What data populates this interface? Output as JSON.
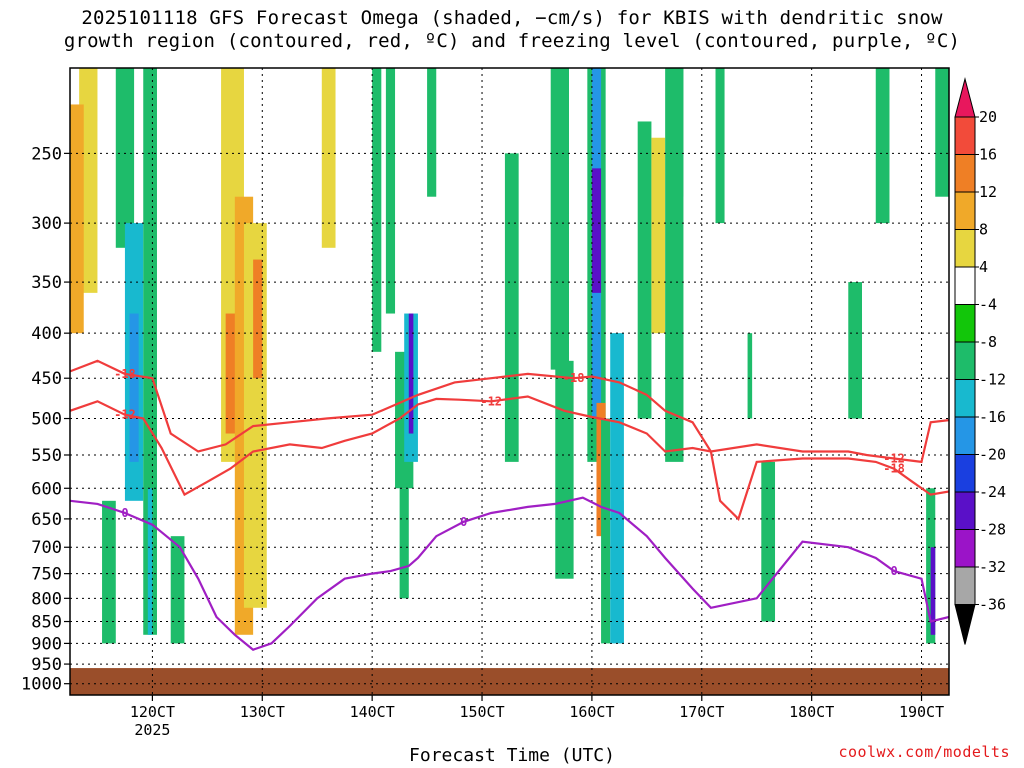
{
  "title": {
    "line1": "2025101118 GFS Forecast Omega (shaded, −cm/s) for KBIS with dendritic snow",
    "line2": "growth region (contoured, red, ºC) and freezing level (contoured, purple, ºC)"
  },
  "credit": "coolwx.com/modelts",
  "chart_data": {
    "type": "heatmap",
    "title": "2025101118 GFS Forecast Omega (shaded, −cm/s) for KBIS with dendritic snow growth region (contoured, red, ºC) and freezing level (contoured, purple, ºC)",
    "xlabel": "Forecast Time (UTC)",
    "ylabel": "",
    "x_ticks": [
      "120CT",
      "130CT",
      "140CT",
      "150CT",
      "160CT",
      "170CT",
      "180CT",
      "190CT"
    ],
    "x_tick_hours": [
      18,
      42,
      66,
      90,
      114,
      138,
      162,
      186
    ],
    "x_subtitle": "2025",
    "xlim_hours": [
      0,
      192
    ],
    "y_ticks": [
      250,
      300,
      350,
      400,
      450,
      500,
      550,
      600,
      650,
      700,
      750,
      800,
      850,
      900,
      950,
      1000
    ],
    "ylim_hpa": [
      200,
      1030
    ],
    "y_scale": "log",
    "grid": true,
    "colorbar": {
      "levels": [
        20,
        16,
        12,
        8,
        4,
        -4,
        -8,
        -12,
        -16,
        -20,
        -24,
        -28,
        -32,
        -36
      ],
      "colors": [
        "#e8175d",
        "#f24b3a",
        "#ef7f25",
        "#f0a929",
        "#e7d640",
        "#ffffff",
        "#12c60a",
        "#1ebc6a",
        "#18b9cf",
        "#2596e6",
        "#1a3fe0",
        "#5a10c8",
        "#9b14c8",
        "#a7a7a7",
        "#000000"
      ]
    },
    "omega_cells": [
      {
        "t": [
          2,
          6
        ],
        "p": [
          200,
          360
        ],
        "v": 8
      },
      {
        "t": [
          0,
          3
        ],
        "p": [
          220,
          400
        ],
        "v": 12
      },
      {
        "t": [
          6,
          12
        ],
        "p": [
          230,
          640
        ],
        "v": 4
      },
      {
        "t": [
          7,
          10
        ],
        "p": [
          620,
          900
        ],
        "v": -8
      },
      {
        "t": [
          10,
          14
        ],
        "p": [
          200,
          320
        ],
        "v": -8
      },
      {
        "t": [
          12,
          16
        ],
        "p": [
          300,
          620
        ],
        "v": -12
      },
      {
        "t": [
          13,
          15
        ],
        "p": [
          380,
          560
        ],
        "v": -16
      },
      {
        "t": [
          16,
          19
        ],
        "p": [
          200,
          880
        ],
        "v": -8
      },
      {
        "t": [
          17,
          18
        ],
        "p": [
          600,
          880
        ],
        "v": -12
      },
      {
        "t": [
          20,
          25
        ],
        "p": [
          200,
          660
        ],
        "v": 4
      },
      {
        "t": [
          22,
          25
        ],
        "p": [
          680,
          900
        ],
        "v": -8
      },
      {
        "t": [
          26,
          30
        ],
        "p": [
          250,
          440
        ],
        "v": 4
      },
      {
        "t": [
          29,
          33
        ],
        "p": [
          400,
          640
        ],
        "v": 4
      },
      {
        "t": [
          33,
          38
        ],
        "p": [
          200,
          560
        ],
        "v": 8
      },
      {
        "t": [
          34,
          37
        ],
        "p": [
          380,
          520
        ],
        "v": 16
      },
      {
        "t": [
          36,
          40
        ],
        "p": [
          280,
          880
        ],
        "v": 12
      },
      {
        "t": [
          38,
          43
        ],
        "p": [
          300,
          820
        ],
        "v": 8
      },
      {
        "t": [
          40,
          42
        ],
        "p": [
          330,
          450
        ],
        "v": 16
      },
      {
        "t": [
          43,
          47
        ],
        "p": [
          250,
          760
        ],
        "v": 4
      },
      {
        "t": [
          47,
          50
        ],
        "p": [
          200,
          600
        ],
        "v": 4
      },
      {
        "t": [
          55,
          58
        ],
        "p": [
          200,
          320
        ],
        "v": 8
      },
      {
        "t": [
          62,
          64
        ],
        "p": [
          200,
          260
        ],
        "v": 4
      },
      {
        "t": [
          66,
          68
        ],
        "p": [
          200,
          420
        ],
        "v": -8
      },
      {
        "t": [
          69,
          71
        ],
        "p": [
          200,
          380
        ],
        "v": -8
      },
      {
        "t": [
          71,
          75
        ],
        "p": [
          420,
          600
        ],
        "v": -8
      },
      {
        "t": [
          72,
          74
        ],
        "p": [
          600,
          800
        ],
        "v": -8
      },
      {
        "t": [
          73,
          76
        ],
        "p": [
          380,
          560
        ],
        "v": -12
      },
      {
        "t": [
          74,
          75
        ],
        "p": [
          380,
          520
        ],
        "v": -24
      },
      {
        "t": [
          78,
          80
        ],
        "p": [
          200,
          280
        ],
        "v": -8
      },
      {
        "t": [
          80,
          82
        ],
        "p": [
          420,
          900
        ],
        "v": 4
      },
      {
        "t": [
          90,
          93
        ],
        "p": [
          200,
          320
        ],
        "v": 4
      },
      {
        "t": [
          95,
          98
        ],
        "p": [
          250,
          560
        ],
        "v": -8
      },
      {
        "t": [
          100,
          102
        ],
        "p": [
          700,
          900
        ],
        "v": 4
      },
      {
        "t": [
          105,
          109
        ],
        "p": [
          200,
          440
        ],
        "v": -8
      },
      {
        "t": [
          106,
          110
        ],
        "p": [
          430,
          760
        ],
        "v": -8
      },
      {
        "t": [
          109,
          112
        ],
        "p": [
          200,
          420
        ],
        "v": 4
      },
      {
        "t": [
          113,
          117
        ],
        "p": [
          200,
          560
        ],
        "v": -8
      },
      {
        "t": [
          114,
          116
        ],
        "p": [
          200,
          500
        ],
        "v": -16
      },
      {
        "t": [
          114,
          116
        ],
        "p": [
          260,
          360
        ],
        "v": -24
      },
      {
        "t": [
          115,
          117
        ],
        "p": [
          480,
          680
        ],
        "v": 16
      },
      {
        "t": [
          116,
          118
        ],
        "p": [
          500,
          900
        ],
        "v": -8
      },
      {
        "t": [
          118,
          121
        ],
        "p": [
          400,
          900
        ],
        "v": -12
      },
      {
        "t": [
          121,
          124
        ],
        "p": [
          200,
          620
        ],
        "v": 4
      },
      {
        "t": [
          124,
          127
        ],
        "p": [
          230,
          500
        ],
        "v": -8
      },
      {
        "t": [
          124,
          127
        ],
        "p": [
          560,
          900
        ],
        "v": 4
      },
      {
        "t": [
          127,
          130
        ],
        "p": [
          240,
          400
        ],
        "v": 8
      },
      {
        "t": [
          130,
          134
        ],
        "p": [
          200,
          560
        ],
        "v": -8
      },
      {
        "t": [
          134,
          137
        ],
        "p": [
          280,
          400
        ],
        "v": 4
      },
      {
        "t": [
          141,
          143
        ],
        "p": [
          200,
          300
        ],
        "v": -8
      },
      {
        "t": [
          143,
          146
        ],
        "p": [
          200,
          330
        ],
        "v": 4
      },
      {
        "t": [
          148,
          149
        ],
        "p": [
          400,
          500
        ],
        "v": -8
      },
      {
        "t": [
          151,
          154
        ],
        "p": [
          560,
          850
        ],
        "v": -8
      },
      {
        "t": [
          155,
          159
        ],
        "p": [
          200,
          350
        ],
        "v": 4
      },
      {
        "t": [
          161,
          163
        ],
        "p": [
          250,
          320
        ],
        "v": 4
      },
      {
        "t": [
          165,
          168
        ],
        "p": [
          200,
          280
        ],
        "v": 4
      },
      {
        "t": [
          170,
          173
        ],
        "p": [
          350,
          500
        ],
        "v": -8
      },
      {
        "t": [
          173,
          177
        ],
        "p": [
          230,
          380
        ],
        "v": 4
      },
      {
        "t": [
          176,
          179
        ],
        "p": [
          200,
          300
        ],
        "v": -8
      },
      {
        "t": [
          180,
          183
        ],
        "p": [
          330,
          520
        ],
        "v": 4
      },
      {
        "t": [
          184,
          187
        ],
        "p": [
          200,
          520
        ],
        "v": 4
      },
      {
        "t": [
          187,
          189
        ],
        "p": [
          600,
          900
        ],
        "v": -8
      },
      {
        "t": [
          188,
          189
        ],
        "p": [
          700,
          880
        ],
        "v": -24
      },
      {
        "t": [
          189,
          192
        ],
        "p": [
          200,
          280
        ],
        "v": -8
      }
    ],
    "contours": [
      {
        "name": "dendritic snow growth -12",
        "value": -12,
        "color": "#f03c3c",
        "t": [
          0,
          6,
          12,
          16,
          20,
          25,
          30,
          35,
          40,
          48,
          55,
          60,
          66,
          72,
          76,
          80,
          85,
          92,
          100,
          108,
          114,
          120,
          126,
          130,
          136,
          140,
          150,
          160,
          170,
          174,
          180,
          186,
          188,
          192
        ],
        "p": [
          490,
          478,
          495,
          500,
          540,
          610,
          590,
          570,
          545,
          535,
          540,
          530,
          520,
          500,
          482,
          475,
          476,
          478,
          472,
          490,
          498,
          505,
          520,
          545,
          540,
          545,
          535,
          545,
          545,
          550,
          555,
          560,
          505,
          502
        ]
      },
      {
        "name": "dendritic snow growth -18",
        "value": -18,
        "color": "#f03c3c",
        "t": [
          0,
          6,
          12,
          18,
          22,
          28,
          34,
          40,
          48,
          56,
          66,
          72,
          76,
          84,
          92,
          100,
          110,
          114,
          120,
          126,
          130,
          136,
          140,
          142,
          146,
          150,
          160,
          170,
          176,
          180,
          184,
          188,
          192
        ],
        "p": [
          442,
          430,
          445,
          450,
          520,
          545,
          535,
          510,
          505,
          500,
          495,
          480,
          470,
          455,
          450,
          445,
          450,
          448,
          455,
          470,
          490,
          505,
          545,
          620,
          650,
          560,
          555,
          555,
          560,
          570,
          590,
          610,
          605
        ]
      },
      {
        "name": "freezing level 0",
        "value": 0,
        "color": "#a01fc4",
        "t": [
          0,
          6,
          12,
          18,
          24,
          28,
          32,
          36,
          40,
          44,
          48,
          54,
          60,
          66,
          70,
          74,
          76,
          80,
          86,
          92,
          100,
          106,
          112,
          116,
          120,
          126,
          130,
          136,
          140,
          150,
          160,
          170,
          176,
          180,
          186,
          188,
          192
        ],
        "p": [
          620,
          625,
          640,
          660,
          700,
          760,
          840,
          880,
          915,
          900,
          860,
          800,
          760,
          750,
          745,
          735,
          720,
          680,
          655,
          640,
          630,
          625,
          615,
          630,
          640,
          680,
          720,
          780,
          820,
          800,
          690,
          700,
          720,
          745,
          760,
          850,
          840
        ]
      }
    ]
  }
}
